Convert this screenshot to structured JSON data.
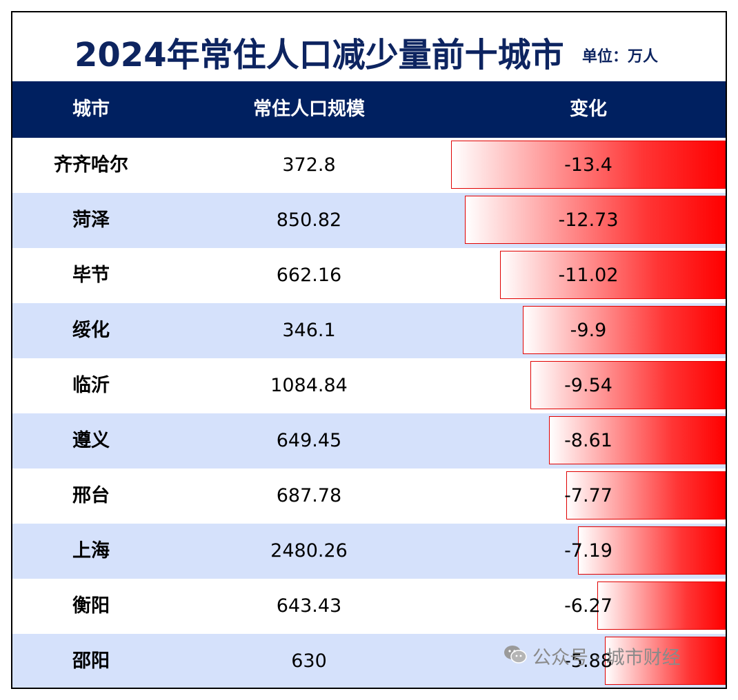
{
  "title": "2024年常住人口减少量前十城市",
  "unit": "单位：万人",
  "watermark": "公众号 · 城市财经",
  "chart_data": {
    "type": "table",
    "title": "2024年常住人口减少量前十城市",
    "unit": "单位：万人",
    "columns": [
      "城市",
      "常住人口规模",
      "变化"
    ],
    "rows": [
      {
        "city": "齐齐哈尔",
        "population": "372.8",
        "change": "-13.4",
        "value": -13.4
      },
      {
        "city": "菏泽",
        "population": "850.82",
        "change": "-12.73",
        "value": -12.73
      },
      {
        "city": "毕节",
        "population": "662.16",
        "change": "-11.02",
        "value": -11.02
      },
      {
        "city": "绥化",
        "population": "346.1",
        "change": "-9.9",
        "value": -9.9
      },
      {
        "city": "临沂",
        "population": "1084.84",
        "change": "-9.54",
        "value": -9.54
      },
      {
        "city": "遵义",
        "population": "649.45",
        "change": "-8.61",
        "value": -8.61
      },
      {
        "city": "邢台",
        "population": "687.78",
        "change": "-7.77",
        "value": -7.77
      },
      {
        "city": "上海",
        "population": "2480.26",
        "change": "-7.19",
        "value": -7.19
      },
      {
        "city": "衡阳",
        "population": "643.43",
        "change": "-6.27",
        "value": -6.27
      },
      {
        "city": "邵阳",
        "population": "630",
        "change": "-5.88",
        "value": -5.88
      }
    ],
    "bar_color": "#ff0000",
    "header_color": "#002060",
    "alt_row_color": "#d5e1fb"
  }
}
